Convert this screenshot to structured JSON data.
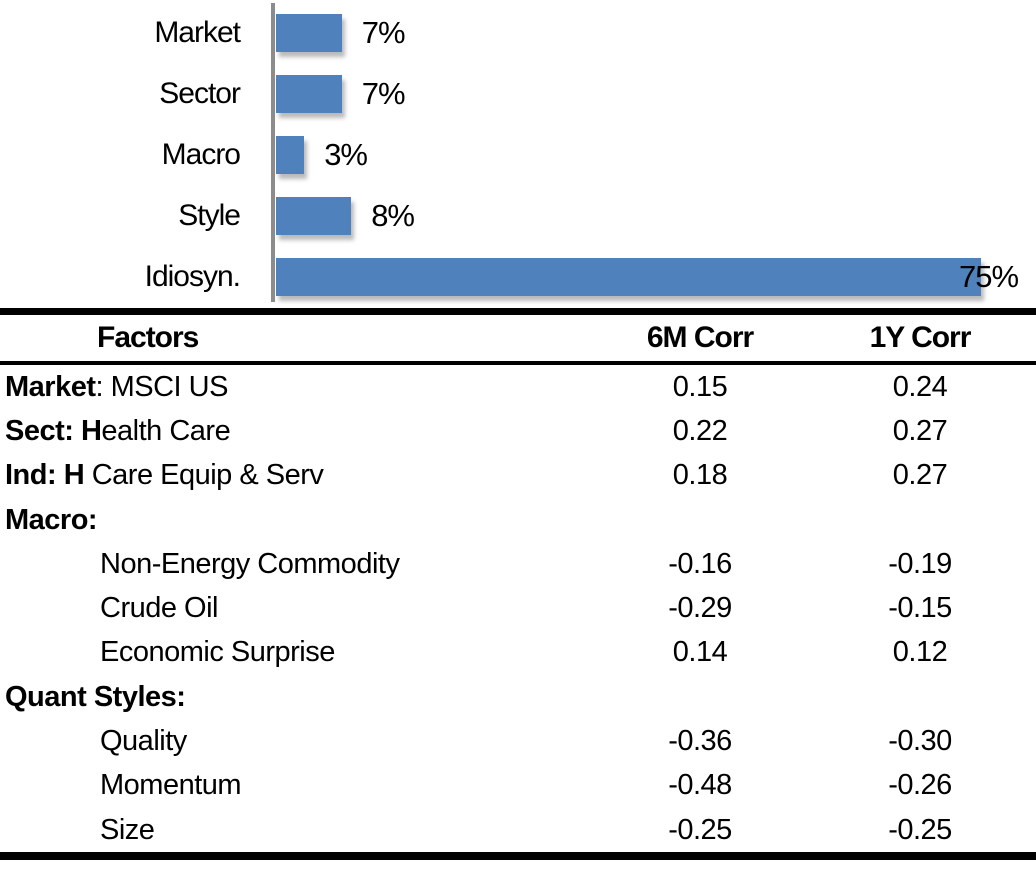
{
  "chart_data": {
    "type": "bar",
    "orientation": "horizontal",
    "title": "",
    "categories": [
      "Market",
      "Sector",
      "Macro",
      "Style",
      "Idiosyn."
    ],
    "values": [
      7,
      7,
      3,
      8,
      75
    ],
    "value_labels": [
      "7%",
      "7%",
      "3%",
      "8%",
      "75%"
    ],
    "bar_color": "#4F81BD",
    "axis_color": "#8C8C8C",
    "xlim": [
      0,
      80
    ],
    "grid": false,
    "legend": "none"
  },
  "table": {
    "columns": [
      "Factors",
      "6M Corr",
      "1Y Corr"
    ],
    "rows": [
      {
        "label_bold": "Market",
        "label_rest": ": MSCI US",
        "indent": false,
        "corr_6m": "0.15",
        "corr_1y": "0.24"
      },
      {
        "label_bold": "Sect: H",
        "label_rest": "ealth Care",
        "indent": false,
        "corr_6m": "0.22",
        "corr_1y": "0.27"
      },
      {
        "label_bold": "Ind: H",
        "label_rest": " Care Equip & Serv",
        "indent": false,
        "corr_6m": "0.18",
        "corr_1y": "0.27"
      },
      {
        "label_bold": "Macro:",
        "label_rest": "",
        "indent": false,
        "corr_6m": "",
        "corr_1y": ""
      },
      {
        "label_bold": "",
        "label_rest": "Non-Energy Commodity",
        "indent": true,
        "corr_6m": "-0.16",
        "corr_1y": "-0.19"
      },
      {
        "label_bold": "",
        "label_rest": "Crude Oil",
        "indent": true,
        "corr_6m": "-0.29",
        "corr_1y": "-0.15"
      },
      {
        "label_bold": "",
        "label_rest": "Economic Surprise",
        "indent": true,
        "corr_6m": "0.14",
        "corr_1y": "0.12"
      },
      {
        "label_bold": "Quant Styles:",
        "label_rest": "",
        "indent": false,
        "corr_6m": "",
        "corr_1y": ""
      },
      {
        "label_bold": "",
        "label_rest": "Quality",
        "indent": true,
        "corr_6m": "-0.36",
        "corr_1y": "-0.30"
      },
      {
        "label_bold": "",
        "label_rest": "Momentum",
        "indent": true,
        "corr_6m": "-0.48",
        "corr_1y": "-0.26"
      },
      {
        "label_bold": "",
        "label_rest": "Size",
        "indent": true,
        "corr_6m": "-0.25",
        "corr_1y": "-0.25"
      }
    ]
  }
}
